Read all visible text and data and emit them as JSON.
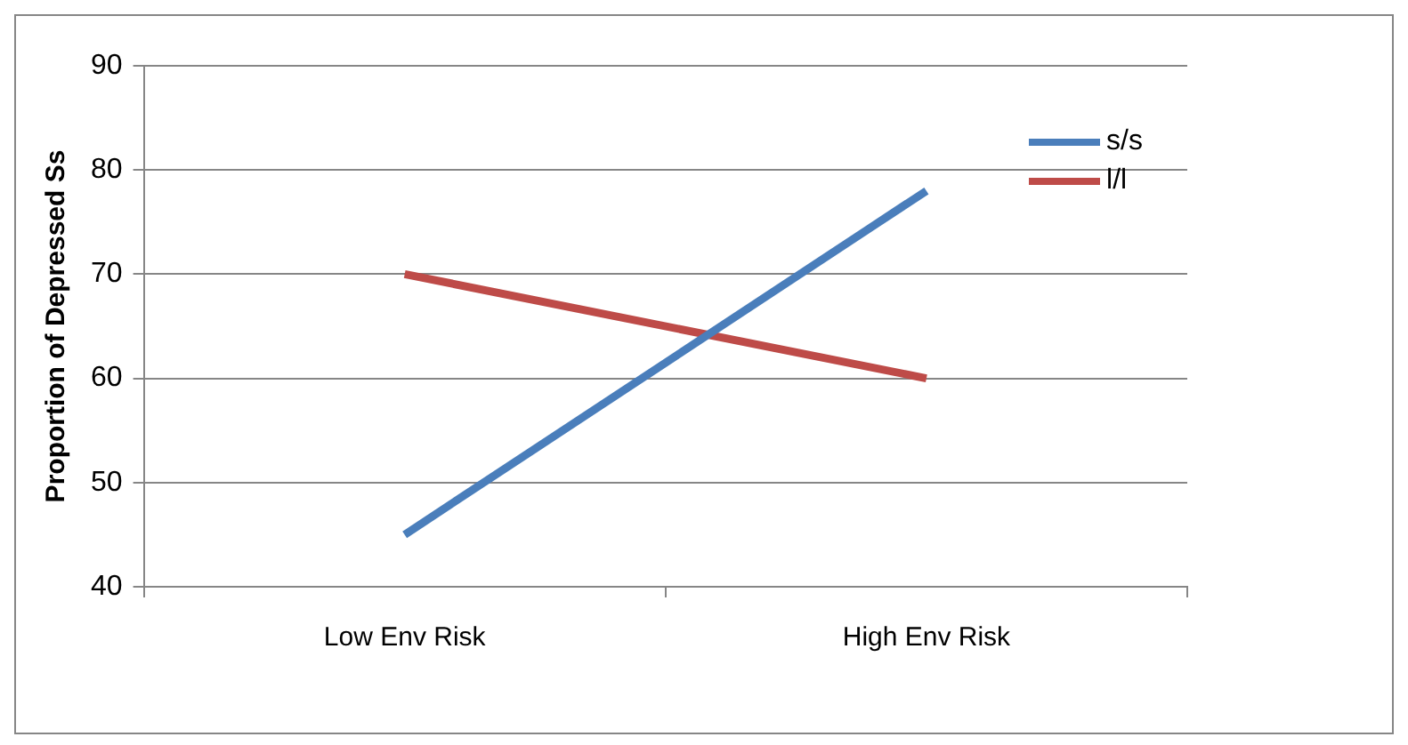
{
  "chart_data": {
    "type": "line",
    "ylabel": "Proportion of Depressed Ss",
    "categories": [
      "Low Env Risk",
      "High Env Risk"
    ],
    "series": [
      {
        "name": "s/s",
        "color": "#4a7ebb",
        "values": [
          45,
          78
        ]
      },
      {
        "name": "l/l",
        "color": "#be4b48",
        "values": [
          70,
          60
        ]
      }
    ],
    "ylim": [
      40,
      90
    ],
    "yticks": [
      40,
      50,
      60,
      70,
      80,
      90
    ],
    "grid": "y",
    "legend": "top right",
    "marker": "none",
    "line_style": "solid"
  }
}
